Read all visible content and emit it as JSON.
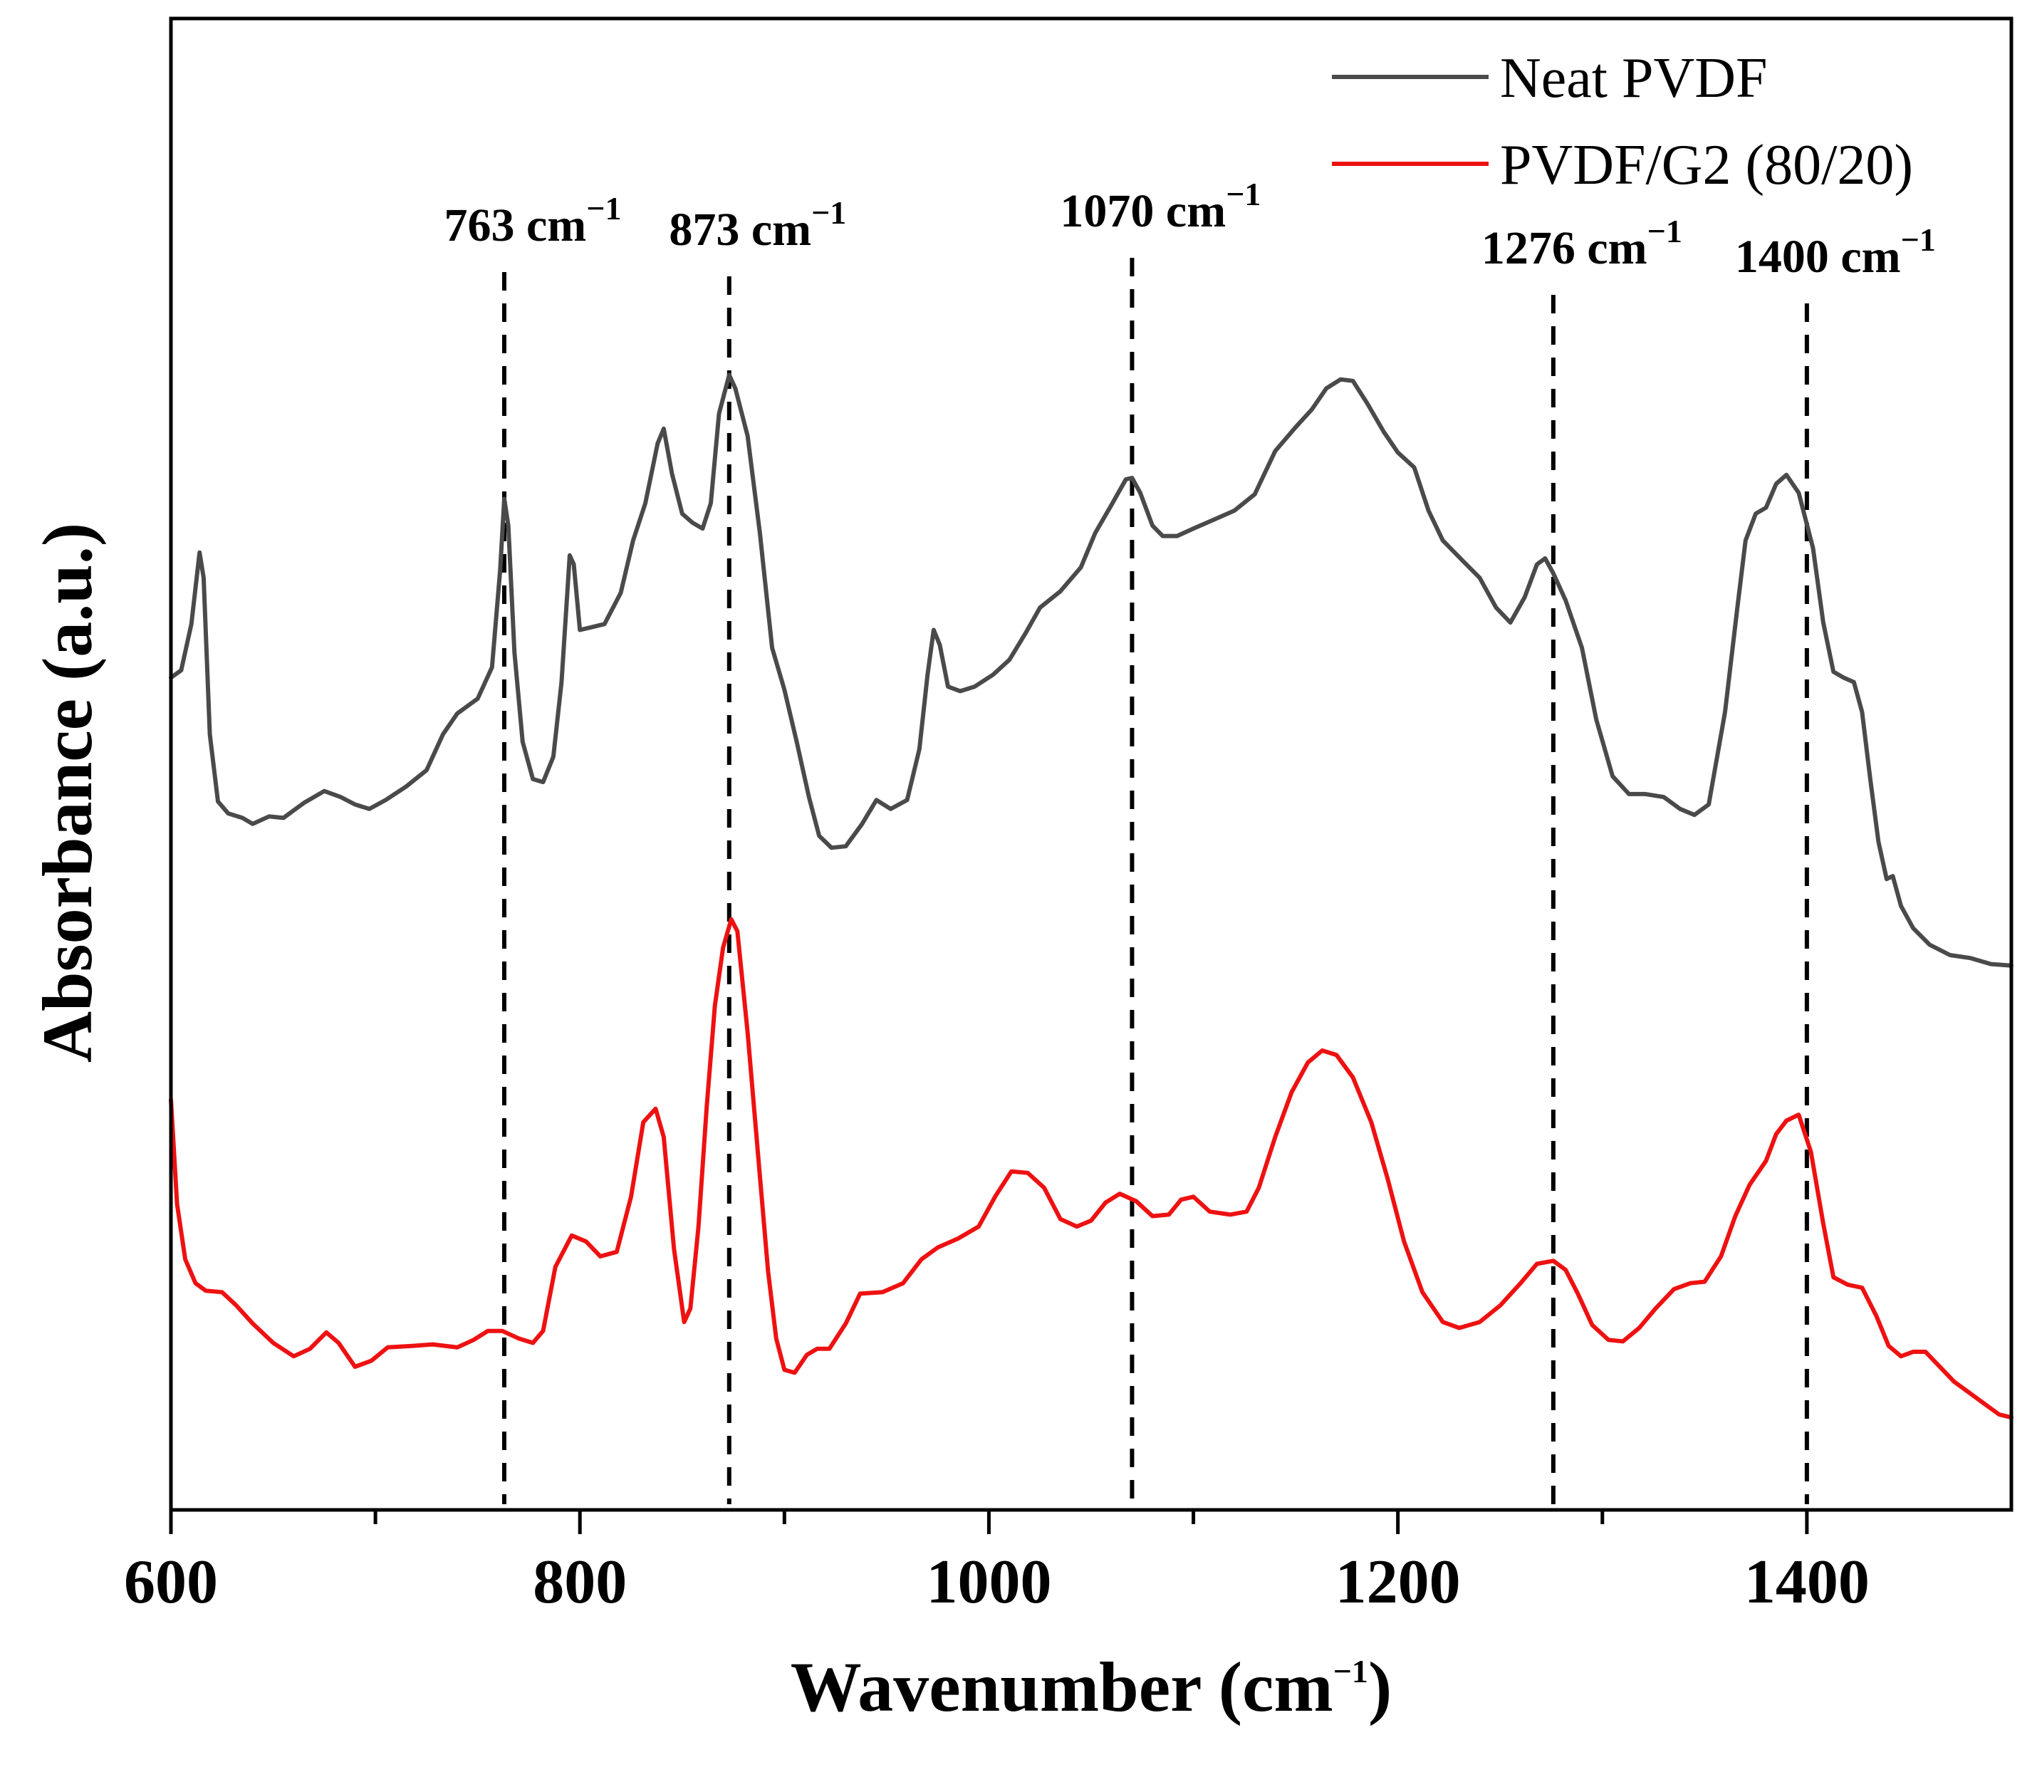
{
  "chart_data": {
    "type": "line",
    "xlabel": "Wavenumber (cm",
    "xlabel_sup": "−1",
    "xlabel_close": ")",
    "ylabel": "Absorbance (a.u.)",
    "xlim": [
      600,
      1500
    ],
    "ylim": [
      0,
      100
    ],
    "x_ticks": [
      600,
      800,
      1000,
      1200,
      1400
    ],
    "x_tick_labels": [
      "600",
      "800",
      "1000",
      "1200",
      "1400"
    ],
    "x_minor_ticks": [
      700,
      900,
      1100,
      1300
    ],
    "y_tick_labels_shown": false,
    "legend": {
      "position": "top-right"
    },
    "annotations": [
      {
        "x": 763,
        "label": "763 cm",
        "sup": "−1"
      },
      {
        "x": 873,
        "label": "873 cm",
        "sup": "−1"
      },
      {
        "x": 1070,
        "label": "1070 cm",
        "sup": "−1"
      },
      {
        "x": 1276,
        "label": "1276 cm",
        "sup": "−1"
      },
      {
        "x": 1400,
        "label": "1400 cm",
        "sup": "−1"
      }
    ],
    "series": [
      {
        "name": "Neat PVDF",
        "color": "#4a4a4a",
        "points": [
          [
            600,
            55.8
          ],
          [
            605,
            56.3
          ],
          [
            610,
            59.4
          ],
          [
            614,
            64.2
          ],
          [
            616,
            62.5
          ],
          [
            619,
            52.0
          ],
          [
            623,
            47.5
          ],
          [
            628,
            46.7
          ],
          [
            635,
            46.4
          ],
          [
            640,
            46.0
          ],
          [
            648,
            46.5
          ],
          [
            655,
            46.4
          ],
          [
            665,
            47.4
          ],
          [
            675,
            48.2
          ],
          [
            683,
            47.8
          ],
          [
            690,
            47.3
          ],
          [
            697,
            47.0
          ],
          [
            705,
            47.6
          ],
          [
            715,
            48.5
          ],
          [
            725,
            49.6
          ],
          [
            733,
            52.0
          ],
          [
            740,
            53.4
          ],
          [
            750,
            54.4
          ],
          [
            757,
            56.5
          ],
          [
            761,
            63.0
          ],
          [
            763,
            67.8
          ],
          [
            765,
            66.0
          ],
          [
            768,
            57.5
          ],
          [
            772,
            51.5
          ],
          [
            777,
            49.0
          ],
          [
            782,
            48.8
          ],
          [
            787,
            50.5
          ],
          [
            791,
            55.5
          ],
          [
            795,
            64.0
          ],
          [
            797,
            63.4
          ],
          [
            800,
            59.0
          ],
          [
            806,
            59.2
          ],
          [
            812,
            59.4
          ],
          [
            820,
            61.5
          ],
          [
            826,
            65.0
          ],
          [
            832,
            67.5
          ],
          [
            838,
            71.5
          ],
          [
            841,
            72.5
          ],
          [
            845,
            69.5
          ],
          [
            850,
            66.8
          ],
          [
            855,
            66.2
          ],
          [
            860,
            65.8
          ],
          [
            864,
            67.5
          ],
          [
            868,
            73.5
          ],
          [
            873,
            76.1
          ],
          [
            876,
            75.2
          ],
          [
            882,
            72.0
          ],
          [
            888,
            65.5
          ],
          [
            894,
            57.8
          ],
          [
            900,
            55.0
          ],
          [
            906,
            51.5
          ],
          [
            912,
            47.8
          ],
          [
            917,
            45.2
          ],
          [
            923,
            44.4
          ],
          [
            930,
            44.5
          ],
          [
            938,
            46.0
          ],
          [
            945,
            47.6
          ],
          [
            952,
            47.0
          ],
          [
            960,
            47.6
          ],
          [
            966,
            51.0
          ],
          [
            970,
            56.0
          ],
          [
            973,
            59.0
          ],
          [
            976,
            58.0
          ],
          [
            980,
            55.2
          ],
          [
            986,
            54.9
          ],
          [
            993,
            55.2
          ],
          [
            1002,
            56.0
          ],
          [
            1010,
            57.0
          ],
          [
            1018,
            58.8
          ],
          [
            1025,
            60.5
          ],
          [
            1035,
            61.6
          ],
          [
            1045,
            63.2
          ],
          [
            1052,
            65.5
          ],
          [
            1060,
            67.4
          ],
          [
            1067,
            69.1
          ],
          [
            1070,
            69.2
          ],
          [
            1074,
            68.2
          ],
          [
            1080,
            66.0
          ],
          [
            1085,
            65.3
          ],
          [
            1092,
            65.3
          ],
          [
            1100,
            65.8
          ],
          [
            1110,
            66.4
          ],
          [
            1120,
            67.0
          ],
          [
            1130,
            68.1
          ],
          [
            1140,
            71.0
          ],
          [
            1150,
            72.6
          ],
          [
            1158,
            73.8
          ],
          [
            1165,
            75.2
          ],
          [
            1172,
            75.8
          ],
          [
            1178,
            75.7
          ],
          [
            1185,
            74.2
          ],
          [
            1193,
            72.3
          ],
          [
            1200,
            70.9
          ],
          [
            1208,
            69.9
          ],
          [
            1215,
            67.0
          ],
          [
            1222,
            65.0
          ],
          [
            1232,
            63.6
          ],
          [
            1240,
            62.5
          ],
          [
            1248,
            60.5
          ],
          [
            1255,
            59.5
          ],
          [
            1262,
            61.2
          ],
          [
            1268,
            63.4
          ],
          [
            1272,
            63.8
          ],
          [
            1276,
            62.8
          ],
          [
            1282,
            61.0
          ],
          [
            1290,
            57.8
          ],
          [
            1297,
            53.0
          ],
          [
            1305,
            49.2
          ],
          [
            1313,
            48.0
          ],
          [
            1321,
            48.0
          ],
          [
            1330,
            47.8
          ],
          [
            1338,
            47.0
          ],
          [
            1345,
            46.6
          ],
          [
            1352,
            47.3
          ],
          [
            1360,
            53.5
          ],
          [
            1366,
            60.5
          ],
          [
            1370,
            65.0
          ],
          [
            1375,
            66.8
          ],
          [
            1380,
            67.2
          ],
          [
            1385,
            68.8
          ],
          [
            1390,
            69.4
          ],
          [
            1396,
            68.2
          ],
          [
            1403,
            64.5
          ],
          [
            1408,
            59.5
          ],
          [
            1413,
            56.2
          ],
          [
            1418,
            55.8
          ],
          [
            1423,
            55.5
          ],
          [
            1427,
            53.5
          ],
          [
            1431,
            49.0
          ],
          [
            1435,
            44.8
          ],
          [
            1439,
            42.3
          ],
          [
            1442,
            42.5
          ],
          [
            1446,
            40.5
          ],
          [
            1452,
            39.0
          ],
          [
            1460,
            37.9
          ],
          [
            1470,
            37.2
          ],
          [
            1480,
            37.0
          ],
          [
            1490,
            36.6
          ],
          [
            1500,
            36.5
          ]
        ]
      },
      {
        "name": "PVDF/G2 (80/20)",
        "color": "#ee1111",
        "points": [
          [
            600,
            27.5
          ],
          [
            603,
            20.5
          ],
          [
            607,
            16.8
          ],
          [
            612,
            15.2
          ],
          [
            617,
            14.7
          ],
          [
            625,
            14.6
          ],
          [
            632,
            13.7
          ],
          [
            640,
            12.5
          ],
          [
            650,
            11.2
          ],
          [
            660,
            10.3
          ],
          [
            668,
            10.8
          ],
          [
            676,
            11.9
          ],
          [
            682,
            11.2
          ],
          [
            690,
            9.6
          ],
          [
            698,
            10.0
          ],
          [
            706,
            10.9
          ],
          [
            718,
            11.0
          ],
          [
            728,
            11.1
          ],
          [
            740,
            10.9
          ],
          [
            748,
            11.4
          ],
          [
            755,
            12.0
          ],
          [
            762,
            12.0
          ],
          [
            770,
            11.5
          ],
          [
            777,
            11.2
          ],
          [
            782,
            12.0
          ],
          [
            788,
            16.3
          ],
          [
            796,
            18.4
          ],
          [
            803,
            18.0
          ],
          [
            810,
            17.0
          ],
          [
            818,
            17.3
          ],
          [
            825,
            21.0
          ],
          [
            831,
            26.0
          ],
          [
            837,
            26.9
          ],
          [
            841,
            25.0
          ],
          [
            846,
            17.5
          ],
          [
            851,
            12.6
          ],
          [
            854,
            13.5
          ],
          [
            858,
            19.0
          ],
          [
            862,
            27.0
          ],
          [
            866,
            33.8
          ],
          [
            870,
            37.7
          ],
          [
            874,
            39.6
          ],
          [
            877,
            38.8
          ],
          [
            882,
            32.0
          ],
          [
            887,
            24.0
          ],
          [
            892,
            16.0
          ],
          [
            896,
            11.5
          ],
          [
            900,
            9.4
          ],
          [
            905,
            9.2
          ],
          [
            911,
            10.4
          ],
          [
            916,
            10.8
          ],
          [
            922,
            10.8
          ],
          [
            930,
            12.5
          ],
          [
            937,
            14.5
          ],
          [
            948,
            14.6
          ],
          [
            958,
            15.2
          ],
          [
            967,
            16.8
          ],
          [
            975,
            17.6
          ],
          [
            985,
            18.2
          ],
          [
            995,
            19.0
          ],
          [
            1003,
            21.0
          ],
          [
            1011,
            22.7
          ],
          [
            1019,
            22.6
          ],
          [
            1027,
            21.6
          ],
          [
            1035,
            19.5
          ],
          [
            1043,
            19.0
          ],
          [
            1050,
            19.4
          ],
          [
            1057,
            20.6
          ],
          [
            1064,
            21.2
          ],
          [
            1072,
            20.7
          ],
          [
            1080,
            19.7
          ],
          [
            1088,
            19.8
          ],
          [
            1094,
            20.8
          ],
          [
            1100,
            21.0
          ],
          [
            1108,
            20.0
          ],
          [
            1118,
            19.8
          ],
          [
            1126,
            20.0
          ],
          [
            1132,
            21.6
          ],
          [
            1140,
            25.0
          ],
          [
            1148,
            28.0
          ],
          [
            1156,
            30.0
          ],
          [
            1163,
            30.8
          ],
          [
            1170,
            30.5
          ],
          [
            1178,
            29.0
          ],
          [
            1187,
            26.0
          ],
          [
            1195,
            22.2
          ],
          [
            1203,
            18.0
          ],
          [
            1212,
            14.6
          ],
          [
            1222,
            12.6
          ],
          [
            1230,
            12.2
          ],
          [
            1240,
            12.6
          ],
          [
            1250,
            13.7
          ],
          [
            1260,
            15.2
          ],
          [
            1268,
            16.5
          ],
          [
            1276,
            16.7
          ],
          [
            1282,
            16.1
          ],
          [
            1288,
            14.5
          ],
          [
            1295,
            12.4
          ],
          [
            1303,
            11.4
          ],
          [
            1310,
            11.3
          ],
          [
            1318,
            12.2
          ],
          [
            1326,
            13.5
          ],
          [
            1335,
            14.8
          ],
          [
            1343,
            15.2
          ],
          [
            1350,
            15.3
          ],
          [
            1358,
            17.0
          ],
          [
            1365,
            19.7
          ],
          [
            1372,
            21.8
          ],
          [
            1380,
            23.4
          ],
          [
            1385,
            25.2
          ],
          [
            1390,
            26.1
          ],
          [
            1396,
            26.5
          ],
          [
            1402,
            24.0
          ],
          [
            1408,
            19.2
          ],
          [
            1413,
            15.6
          ],
          [
            1420,
            15.1
          ],
          [
            1427,
            14.9
          ],
          [
            1434,
            13.0
          ],
          [
            1440,
            11.0
          ],
          [
            1446,
            10.3
          ],
          [
            1452,
            10.6
          ],
          [
            1458,
            10.6
          ],
          [
            1465,
            9.6
          ],
          [
            1472,
            8.6
          ],
          [
            1480,
            7.8
          ],
          [
            1488,
            7.0
          ],
          [
            1494,
            6.4
          ],
          [
            1500,
            6.2
          ]
        ]
      }
    ]
  }
}
